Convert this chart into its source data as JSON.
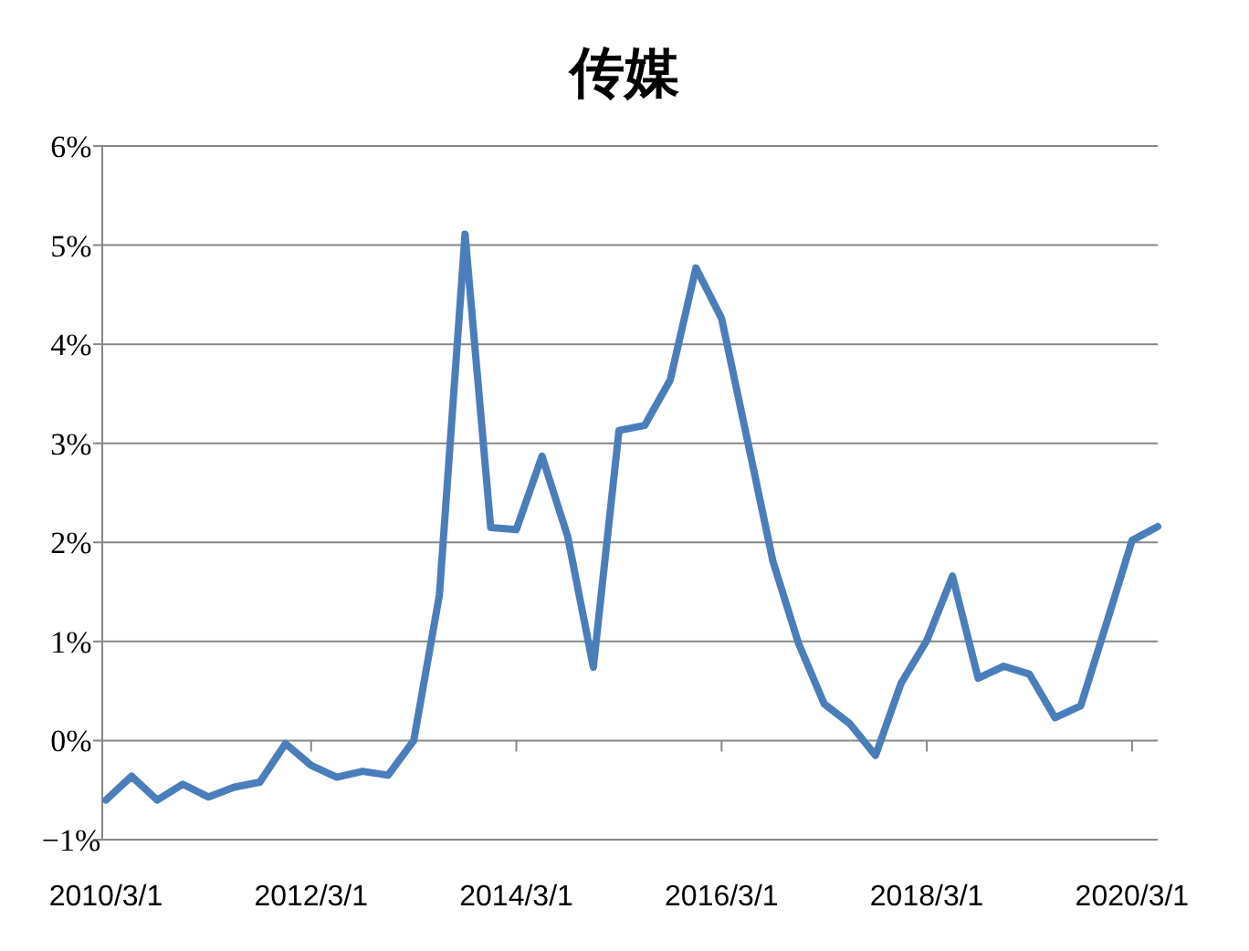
{
  "chart_data": {
    "type": "line",
    "title": "传媒",
    "categories": [
      "2010/3/1",
      null,
      null,
      null,
      null,
      null,
      null,
      null,
      "2012/3/1",
      null,
      null,
      null,
      null,
      null,
      null,
      null,
      "2014/3/1",
      null,
      null,
      null,
      null,
      null,
      null,
      null,
      "2016/3/1",
      null,
      null,
      null,
      null,
      null,
      null,
      null,
      "2018/3/1",
      null,
      null,
      null,
      null,
      null,
      null,
      null,
      "2020/3/1",
      null
    ],
    "series": [
      {
        "color": "#4a7ebb",
        "values": [
          -0.6,
          -0.36,
          -0.6,
          -0.44,
          -0.57,
          -0.47,
          -0.42,
          -0.03,
          -0.25,
          -0.37,
          -0.31,
          -0.35,
          0.0,
          1.47,
          5.11,
          2.15,
          2.13,
          2.87,
          2.06,
          0.74,
          3.13,
          3.18,
          3.64,
          4.77,
          4.26,
          3.04,
          1.81,
          0.98,
          0.37,
          0.17,
          -0.15,
          0.58,
          1.01,
          1.66,
          0.63,
          0.75,
          0.67,
          0.23,
          0.35,
          1.18,
          2.02,
          2.16
        ]
      }
    ],
    "ylim": [
      -1,
      6
    ],
    "yticks": [
      {
        "value": -1,
        "label": "−1%"
      },
      {
        "value": 0,
        "label": "0%"
      },
      {
        "value": 1,
        "label": "1%"
      },
      {
        "value": 2,
        "label": "2%"
      },
      {
        "value": 3,
        "label": "3%"
      },
      {
        "value": 4,
        "label": "4%"
      },
      {
        "value": 5,
        "label": "5%"
      },
      {
        "value": 6,
        "label": "6%"
      }
    ],
    "grid": "y"
  }
}
